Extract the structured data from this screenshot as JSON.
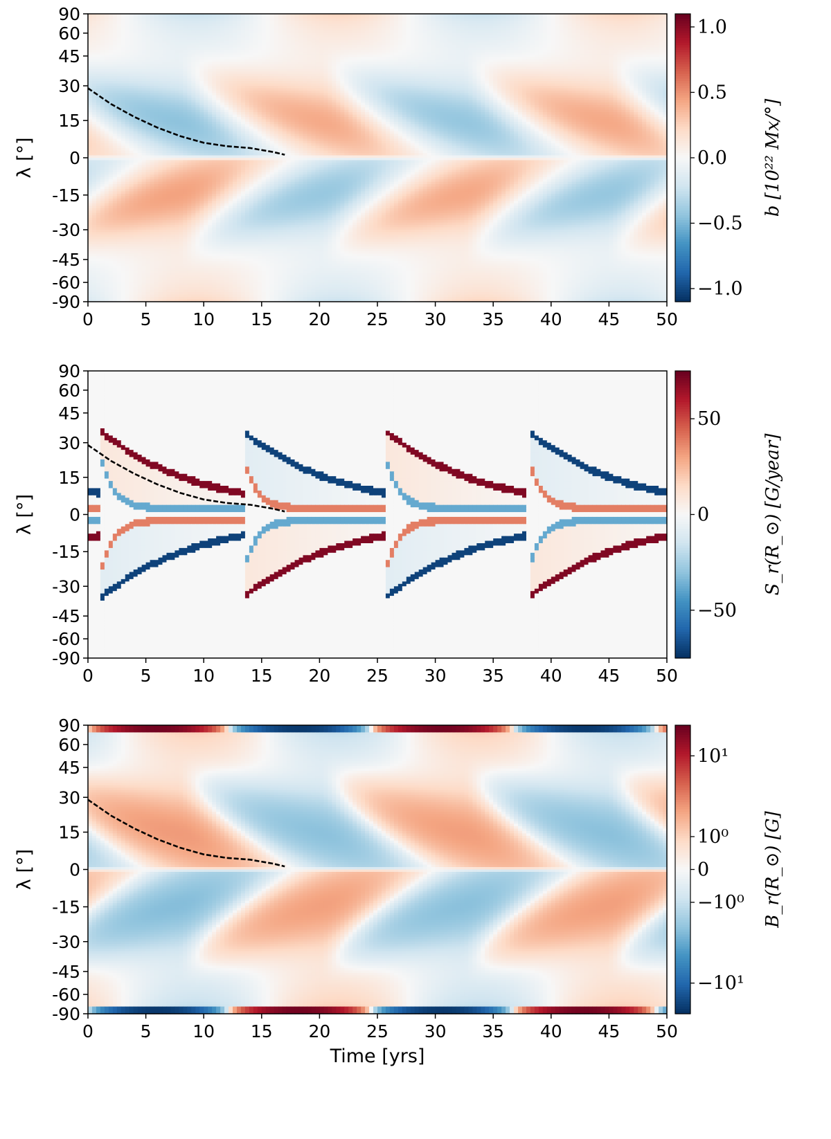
{
  "chart_data": [
    {
      "type": "heatmap",
      "xlabel": "",
      "ylabel": "λ [°]",
      "xlim": [
        0,
        50
      ],
      "xticks": [
        "0",
        "5",
        "10",
        "15",
        "20",
        "25",
        "30",
        "35",
        "40",
        "45",
        "50"
      ],
      "yticks": [
        "90",
        "60",
        "45",
        "30",
        "15",
        "0",
        "-15",
        "-30",
        "-45",
        "-60",
        "-90"
      ],
      "y_scale": "sine-latitude",
      "colormap": "RdBu_r",
      "colorbar": {
        "label": "b [10²² Mx/°]",
        "range": [
          -1.1,
          1.1
        ],
        "ticks": [
          "1.0",
          "0.5",
          "0.0",
          "−0.5",
          "−1.0"
        ],
        "tick_values": [
          1.0,
          0.5,
          0.0,
          -0.5,
          -1.0
        ]
      },
      "pattern": {
        "period_years": 24.6,
        "half_cycle_years": 12.3,
        "peak_abs": 1.1
      },
      "dashed_track": {
        "x": [
          0,
          2,
          4,
          6,
          8,
          10,
          12,
          14,
          16,
          17
        ],
        "y": [
          28.9,
          21.9,
          16.5,
          12.1,
          8.6,
          6.0,
          4.6,
          3.9,
          2.3,
          1.2
        ]
      }
    },
    {
      "type": "heatmap",
      "xlabel": "",
      "ylabel": "λ [°]",
      "xlim": [
        0,
        50
      ],
      "xticks": [
        "0",
        "5",
        "10",
        "15",
        "20",
        "25",
        "30",
        "35",
        "40",
        "45",
        "50"
      ],
      "yticks": [
        "90",
        "60",
        "45",
        "30",
        "15",
        "0",
        "-15",
        "-30",
        "-45",
        "-60",
        "-90"
      ],
      "y_scale": "sine-latitude",
      "colormap": "RdBu_r",
      "colorbar": {
        "label": "S_r(R_⊙) [G/year]",
        "range": [
          -75,
          75
        ],
        "ticks": [
          "50",
          "0",
          "−50"
        ],
        "tick_values": [
          50,
          0,
          -50
        ]
      },
      "pattern": {
        "period_years": 24.6,
        "half_cycle_years": 12.3,
        "peak_abs": 75
      },
      "dashed_track": {
        "x": [
          0,
          2,
          4,
          6,
          8,
          10,
          12,
          14,
          16,
          17
        ],
        "y": [
          28.9,
          21.9,
          16.5,
          12.1,
          8.6,
          6.0,
          4.6,
          3.9,
          2.3,
          1.2
        ]
      }
    },
    {
      "type": "heatmap",
      "xlabel": "Time [yrs]",
      "ylabel": "λ [°]",
      "xlim": [
        0,
        50
      ],
      "xticks": [
        "0",
        "5",
        "10",
        "15",
        "20",
        "25",
        "30",
        "35",
        "40",
        "45",
        "50"
      ],
      "yticks": [
        "90",
        "60",
        "45",
        "30",
        "15",
        "0",
        "-15",
        "-30",
        "-45",
        "-60",
        "-90"
      ],
      "y_scale": "sine-latitude",
      "colormap": "RdBu_r",
      "colorbar": {
        "label": "B_r(R_⊙) [G]",
        "scale": "symlog",
        "range": [
          -20,
          20
        ],
        "ticks": [
          "10¹",
          "10⁰",
          "0",
          "−10⁰",
          "−10¹"
        ],
        "tick_values": [
          10,
          1,
          0,
          -1,
          -10
        ]
      },
      "pattern": {
        "period_years": 24.6,
        "half_cycle_years": 12.3,
        "peak_abs": 20
      },
      "dashed_track": {
        "x": [
          0,
          2,
          4,
          6,
          8,
          10,
          12,
          14,
          16,
          17
        ],
        "y": [
          28.9,
          21.9,
          16.5,
          12.1,
          8.6,
          6.0,
          4.6,
          3.9,
          2.3,
          1.2
        ]
      }
    }
  ]
}
